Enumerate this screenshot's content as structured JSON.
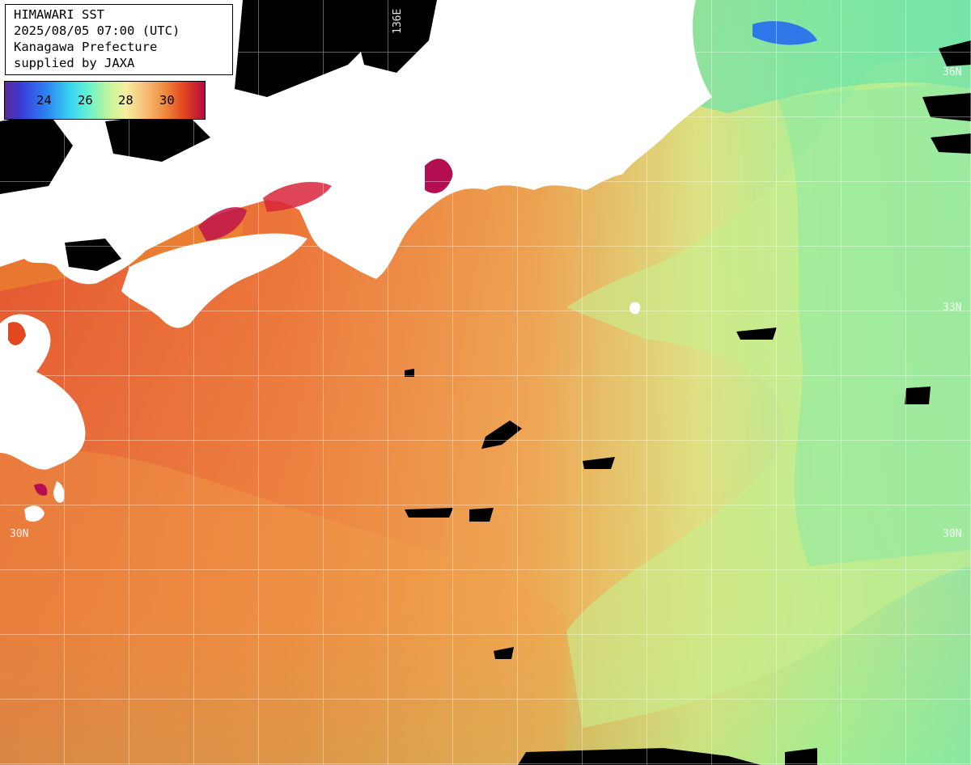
{
  "info": {
    "title": "HIMAWARI SST",
    "datetime": "2025/08/05 07:00 (UTC)",
    "region": "Kanagawa Prefecture",
    "credit": "supplied by JAXA"
  },
  "colorbar": {
    "labels": [
      "24",
      "26",
      "28",
      "30"
    ]
  },
  "grid_labels": {
    "lat_36_right": "36N",
    "lat_33_right": "33N",
    "lat_30_left": "30N",
    "lat_30_right": "30N",
    "lon_136": "136E"
  },
  "colors": {
    "land": "#ffffff",
    "no_data": "#000000",
    "warm_sst": "#ea8530",
    "hot_sst": "#e2481f",
    "cool_sst": "#b6ef8c",
    "cold_sst": "#6ae9b2"
  }
}
